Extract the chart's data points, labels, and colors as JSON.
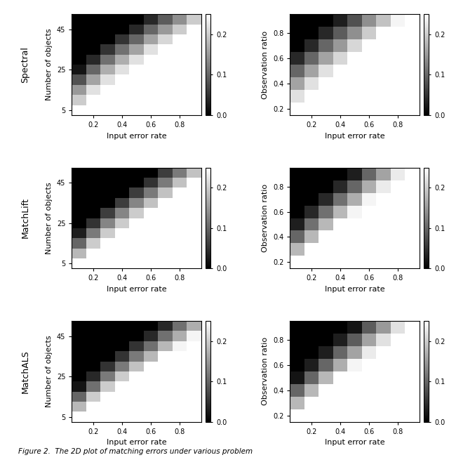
{
  "row_labels": [
    "Spectral",
    "MatchLift",
    "MatchALS"
  ],
  "col1_ylabel": "Number of objects",
  "col2_ylabel": "Observation ratio",
  "xlabel": "Input error rate",
  "col1_yticks": [
    5,
    25,
    45
  ],
  "col2_yticks": [
    0.2,
    0.4,
    0.6,
    0.8
  ],
  "xticks": [
    0.2,
    0.4,
    0.6,
    0.8
  ],
  "vmin": 0.0,
  "vmax": 0.25,
  "colorbar_ticks": [
    0,
    0.1,
    0.2
  ],
  "fig_caption": "Figure 2.  The 2D plot of matching errors under various problem",
  "col1_err_x": [
    0.1,
    0.2,
    0.3,
    0.4,
    0.5,
    0.6,
    0.7,
    0.8,
    0.9
  ],
  "col1_nobj_y": [
    5,
    10,
    15,
    20,
    25,
    30,
    35,
    40,
    45,
    50
  ],
  "col2_err_x": [
    0.1,
    0.2,
    0.3,
    0.4,
    0.5,
    0.6,
    0.7,
    0.8,
    0.9
  ],
  "col2_obs_y": [
    0.2,
    0.3,
    0.4,
    0.5,
    0.6,
    0.7,
    0.8,
    0.9
  ],
  "spectral_col1": [
    [
      0.25,
      0.25,
      0.25,
      0.25,
      0.25,
      0.25,
      0.25,
      0.25,
      0.25
    ],
    [
      0.2,
      0.25,
      0.25,
      0.25,
      0.25,
      0.25,
      0.25,
      0.25,
      0.25
    ],
    [
      0.15,
      0.22,
      0.25,
      0.25,
      0.25,
      0.25,
      0.25,
      0.25,
      0.25
    ],
    [
      0.08,
      0.16,
      0.22,
      0.25,
      0.25,
      0.25,
      0.25,
      0.25,
      0.25
    ],
    [
      0.02,
      0.1,
      0.17,
      0.22,
      0.25,
      0.25,
      0.25,
      0.25,
      0.25
    ],
    [
      0.0,
      0.04,
      0.11,
      0.17,
      0.22,
      0.25,
      0.25,
      0.25,
      0.25
    ],
    [
      0.0,
      0.0,
      0.05,
      0.11,
      0.16,
      0.22,
      0.25,
      0.25,
      0.25
    ],
    [
      0.0,
      0.0,
      0.0,
      0.05,
      0.1,
      0.16,
      0.21,
      0.25,
      0.25
    ],
    [
      0.0,
      0.0,
      0.0,
      0.0,
      0.04,
      0.1,
      0.15,
      0.2,
      0.25
    ],
    [
      0.0,
      0.0,
      0.0,
      0.0,
      0.0,
      0.04,
      0.09,
      0.14,
      0.2
    ]
  ],
  "spectral_col2": [
    [
      0.25,
      0.25,
      0.25,
      0.25,
      0.25,
      0.25,
      0.25,
      0.25,
      0.25
    ],
    [
      0.22,
      0.25,
      0.25,
      0.25,
      0.25,
      0.25,
      0.25,
      0.25,
      0.25
    ],
    [
      0.16,
      0.22,
      0.25,
      0.25,
      0.25,
      0.25,
      0.25,
      0.25,
      0.25
    ],
    [
      0.1,
      0.16,
      0.22,
      0.25,
      0.25,
      0.25,
      0.25,
      0.25,
      0.25
    ],
    [
      0.04,
      0.1,
      0.16,
      0.21,
      0.25,
      0.25,
      0.25,
      0.25,
      0.25
    ],
    [
      0.0,
      0.04,
      0.1,
      0.15,
      0.21,
      0.25,
      0.25,
      0.25,
      0.25
    ],
    [
      0.0,
      0.0,
      0.04,
      0.09,
      0.14,
      0.2,
      0.25,
      0.25,
      0.25
    ],
    [
      0.0,
      0.0,
      0.0,
      0.03,
      0.08,
      0.14,
      0.19,
      0.24,
      0.25
    ]
  ],
  "matchlift_col1": [
    [
      0.25,
      0.25,
      0.25,
      0.25,
      0.25,
      0.25,
      0.25,
      0.25,
      0.25
    ],
    [
      0.18,
      0.25,
      0.25,
      0.25,
      0.25,
      0.25,
      0.25,
      0.25,
      0.25
    ],
    [
      0.1,
      0.2,
      0.25,
      0.25,
      0.25,
      0.25,
      0.25,
      0.25,
      0.25
    ],
    [
      0.03,
      0.12,
      0.2,
      0.25,
      0.25,
      0.25,
      0.25,
      0.25,
      0.25
    ],
    [
      0.0,
      0.05,
      0.13,
      0.2,
      0.25,
      0.25,
      0.25,
      0.25,
      0.25
    ],
    [
      0.0,
      0.0,
      0.06,
      0.13,
      0.2,
      0.25,
      0.25,
      0.25,
      0.25
    ],
    [
      0.0,
      0.0,
      0.0,
      0.06,
      0.13,
      0.19,
      0.25,
      0.25,
      0.25
    ],
    [
      0.0,
      0.0,
      0.0,
      0.0,
      0.06,
      0.12,
      0.19,
      0.25,
      0.25
    ],
    [
      0.0,
      0.0,
      0.0,
      0.0,
      0.0,
      0.05,
      0.12,
      0.19,
      0.25
    ],
    [
      0.0,
      0.0,
      0.0,
      0.0,
      0.0,
      0.0,
      0.06,
      0.12,
      0.19
    ]
  ],
  "matchlift_col2": [
    [
      0.25,
      0.25,
      0.25,
      0.25,
      0.25,
      0.25,
      0.25,
      0.25,
      0.25
    ],
    [
      0.18,
      0.25,
      0.25,
      0.25,
      0.25,
      0.25,
      0.25,
      0.25,
      0.25
    ],
    [
      0.1,
      0.18,
      0.25,
      0.25,
      0.25,
      0.25,
      0.25,
      0.25,
      0.25
    ],
    [
      0.03,
      0.11,
      0.18,
      0.25,
      0.25,
      0.25,
      0.25,
      0.25,
      0.25
    ],
    [
      0.0,
      0.04,
      0.11,
      0.18,
      0.24,
      0.25,
      0.25,
      0.25,
      0.25
    ],
    [
      0.0,
      0.0,
      0.04,
      0.11,
      0.17,
      0.24,
      0.25,
      0.25,
      0.25
    ],
    [
      0.0,
      0.0,
      0.0,
      0.04,
      0.1,
      0.17,
      0.23,
      0.25,
      0.25
    ],
    [
      0.0,
      0.0,
      0.0,
      0.0,
      0.03,
      0.1,
      0.16,
      0.23,
      0.25
    ]
  ],
  "matchals_col1": [
    [
      0.25,
      0.25,
      0.25,
      0.25,
      0.25,
      0.25,
      0.25,
      0.25,
      0.25
    ],
    [
      0.18,
      0.25,
      0.25,
      0.25,
      0.25,
      0.25,
      0.25,
      0.25,
      0.25
    ],
    [
      0.1,
      0.2,
      0.25,
      0.25,
      0.25,
      0.25,
      0.25,
      0.25,
      0.25
    ],
    [
      0.02,
      0.11,
      0.2,
      0.25,
      0.25,
      0.25,
      0.25,
      0.25,
      0.25
    ],
    [
      0.0,
      0.04,
      0.12,
      0.2,
      0.25,
      0.25,
      0.25,
      0.25,
      0.25
    ],
    [
      0.0,
      0.0,
      0.05,
      0.12,
      0.19,
      0.25,
      0.25,
      0.25,
      0.25
    ],
    [
      0.0,
      0.0,
      0.0,
      0.05,
      0.12,
      0.18,
      0.25,
      0.25,
      0.25
    ],
    [
      0.0,
      0.0,
      0.0,
      0.0,
      0.05,
      0.11,
      0.18,
      0.24,
      0.25
    ],
    [
      0.0,
      0.0,
      0.0,
      0.0,
      0.0,
      0.04,
      0.11,
      0.17,
      0.24
    ],
    [
      0.0,
      0.0,
      0.0,
      0.0,
      0.0,
      0.0,
      0.04,
      0.11,
      0.17
    ]
  ],
  "matchals_col2": [
    [
      0.25,
      0.25,
      0.25,
      0.25,
      0.25,
      0.25,
      0.25,
      0.25,
      0.25
    ],
    [
      0.18,
      0.25,
      0.25,
      0.25,
      0.25,
      0.25,
      0.25,
      0.25,
      0.25
    ],
    [
      0.1,
      0.18,
      0.25,
      0.25,
      0.25,
      0.25,
      0.25,
      0.25,
      0.25
    ],
    [
      0.02,
      0.1,
      0.18,
      0.25,
      0.25,
      0.25,
      0.25,
      0.25,
      0.25
    ],
    [
      0.0,
      0.03,
      0.1,
      0.17,
      0.24,
      0.25,
      0.25,
      0.25,
      0.25
    ],
    [
      0.0,
      0.0,
      0.03,
      0.1,
      0.16,
      0.23,
      0.25,
      0.25,
      0.25
    ],
    [
      0.0,
      0.0,
      0.0,
      0.03,
      0.09,
      0.16,
      0.22,
      0.25,
      0.25
    ],
    [
      0.0,
      0.0,
      0.0,
      0.0,
      0.02,
      0.09,
      0.15,
      0.22,
      0.25
    ]
  ]
}
